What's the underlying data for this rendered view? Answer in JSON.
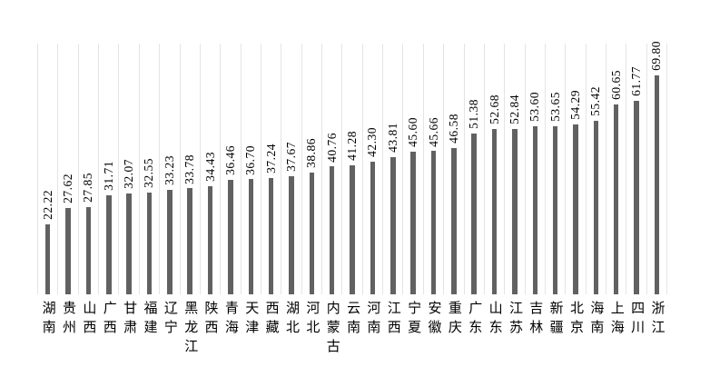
{
  "page": {
    "background_color": "#ffffff",
    "title": ""
  },
  "chart_data": {
    "type": "bar",
    "title": "",
    "xlabel": "",
    "ylabel": "",
    "ylim": [
      0,
      80
    ],
    "legend_position": "none",
    "grid": "vertical category separator lines, no horizontal gridlines, no visible axes",
    "value_label_style": "rotated 90deg, reading bottom-to-top, above each bar",
    "x_label_style": "CJK characters stacked vertically under each bar",
    "bar_color": "#616161",
    "separator_color": "#e4e4e4",
    "text_color": "#000000",
    "categories": [
      "湖南",
      "贵州",
      "山西",
      "广西",
      "甘肃",
      "福建",
      "辽宁",
      "黑龙江",
      "陕西",
      "青海",
      "天津",
      "西藏",
      "湖北",
      "河北",
      "内蒙古",
      "云南",
      "河南",
      "江西",
      "宁夏",
      "安徽",
      "重庆",
      "广东",
      "山东",
      "江苏",
      "吉林",
      "新疆",
      "北京",
      "海南",
      "上海",
      "四川",
      "浙江"
    ],
    "values": [
      22.22,
      27.62,
      27.85,
      31.71,
      32.07,
      32.55,
      33.23,
      33.78,
      34.43,
      36.46,
      36.7,
      37.24,
      37.67,
      38.86,
      40.76,
      41.28,
      42.3,
      43.81,
      45.6,
      45.66,
      46.58,
      51.38,
      52.68,
      52.84,
      53.6,
      53.65,
      54.29,
      55.42,
      60.65,
      61.77,
      69.8
    ],
    "value_labels": [
      "22.22",
      "27.62",
      "27.85",
      "31.71",
      "32.07",
      "32.55",
      "33.23",
      "33.78",
      "34.43",
      "36.46",
      "36.70",
      "37.24",
      "37.67",
      "38.86",
      "40.76",
      "41.28",
      "42.30",
      "43.81",
      "45.60",
      "45.66",
      "46.58",
      "51.38",
      "52.68",
      "52.84",
      "53.60",
      "53.65",
      "54.29",
      "55.42",
      "60.65",
      "61.77",
      "69.80"
    ]
  }
}
